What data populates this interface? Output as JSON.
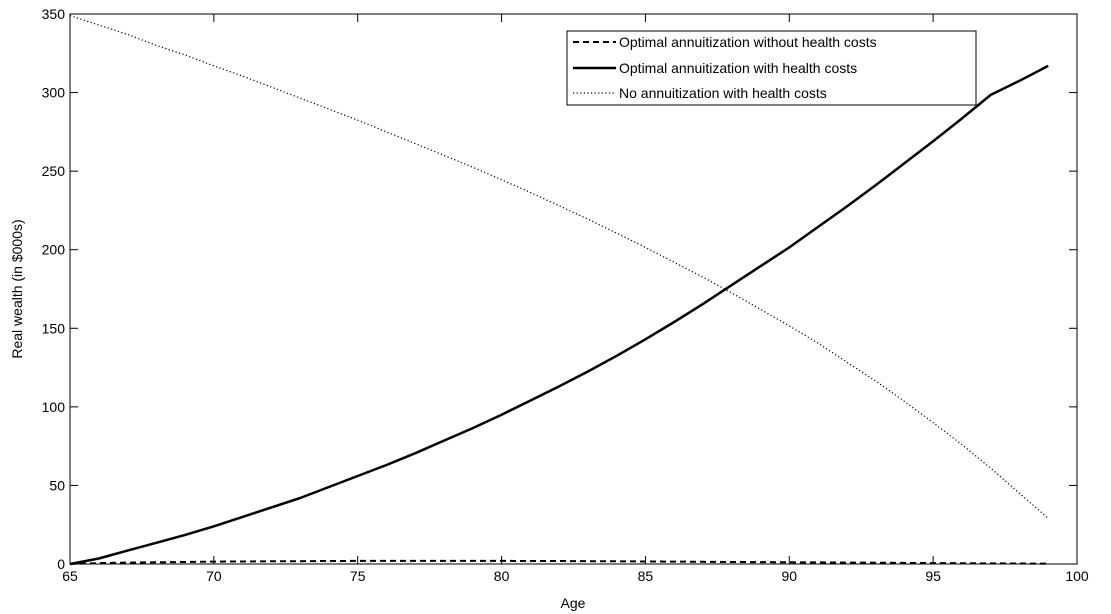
{
  "chart_data": {
    "type": "line",
    "title": "",
    "xlabel": "Age",
    "ylabel": "Real wealth (in $000s)",
    "xlim": [
      65,
      100
    ],
    "ylim": [
      0,
      350
    ],
    "xticks": [
      65,
      70,
      75,
      80,
      85,
      90,
      95,
      100
    ],
    "yticks": [
      0,
      50,
      100,
      150,
      200,
      250,
      300,
      350
    ],
    "grid": false,
    "legend_position": "top-right",
    "series": [
      {
        "name": "Optimal annuitization without health costs",
        "style": "dashed",
        "color": "#000000",
        "x": [
          65,
          66,
          67,
          68,
          69,
          70,
          71,
          72,
          73,
          74,
          75,
          76,
          77,
          78,
          79,
          80,
          81,
          82,
          83,
          84,
          85,
          86,
          87,
          88,
          89,
          90,
          91,
          92,
          93,
          94,
          95,
          96,
          97,
          98,
          99
        ],
        "y": [
          0,
          0.6,
          0.9,
          1.1,
          1.3,
          1.5,
          1.6,
          1.7,
          1.8,
          1.9,
          2.0,
          2.0,
          2.0,
          2.0,
          2.0,
          2.0,
          1.9,
          1.9,
          1.8,
          1.7,
          1.6,
          1.5,
          1.4,
          1.3,
          1.2,
          1.1,
          1.0,
          0.9,
          0.8,
          0.7,
          0.6,
          0.5,
          0.4,
          0.3,
          0.2
        ]
      },
      {
        "name": "Optimal annuitization with health costs",
        "style": "solid",
        "color": "#000000",
        "x": [
          65,
          66,
          67,
          68,
          69,
          70,
          71,
          72,
          73,
          74,
          75,
          76,
          77,
          78,
          79,
          80,
          81,
          82,
          83,
          84,
          85,
          86,
          87,
          88,
          89,
          90,
          91,
          92,
          93,
          94,
          95,
          96,
          97,
          98,
          99
        ],
        "y": [
          0,
          3.5,
          8.5,
          13.5,
          18.5,
          24,
          30,
          36,
          42,
          49,
          56,
          63,
          70.5,
          78.5,
          86.5,
          95,
          104,
          113,
          122.5,
          132.5,
          143,
          154,
          165.5,
          177.5,
          189.5,
          201.5,
          214.5,
          227.5,
          241,
          255,
          269,
          283.5,
          298.5,
          307.5,
          317
        ]
      },
      {
        "name": "No annuitization with health costs",
        "style": "dotted",
        "color": "#000000",
        "x": [
          65,
          66,
          67,
          68,
          69,
          70,
          71,
          72,
          73,
          74,
          75,
          76,
          77,
          78,
          79,
          80,
          81,
          82,
          83,
          84,
          85,
          86,
          87,
          88,
          89,
          90,
          91,
          92,
          93,
          94,
          95,
          96,
          97,
          98,
          99
        ],
        "y": [
          349,
          343,
          337,
          330,
          324,
          317,
          310.5,
          303.5,
          296.5,
          289.5,
          282.5,
          275,
          267.5,
          260,
          252.5,
          244.5,
          236.5,
          228,
          219.5,
          210.5,
          201.5,
          192,
          182.5,
          172.5,
          162,
          151.5,
          140.5,
          128.5,
          116.5,
          103.5,
          90,
          76,
          61,
          45,
          29
        ]
      }
    ]
  }
}
